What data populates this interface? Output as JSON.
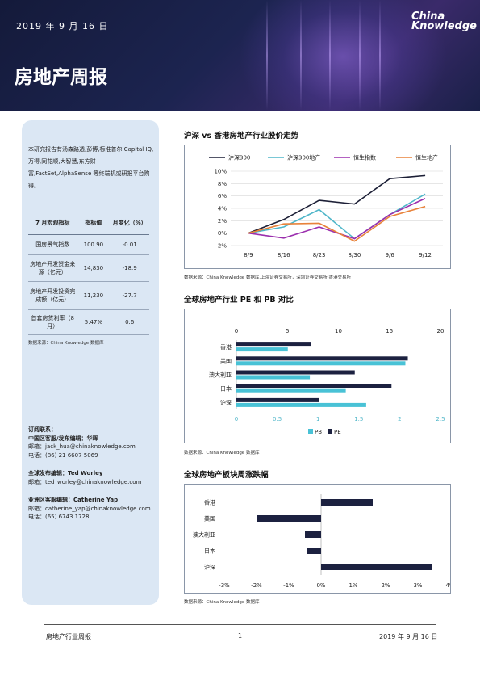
{
  "header": {
    "date": "2019 年 9 月 16 日",
    "title": "房地产周报",
    "logo_line1": "China",
    "logo_line2": "Knowledge"
  },
  "sidebar": {
    "intro": "本研究报告有汤森路透,彭博,标准普尔 Capital IQ,万得,同花顺,大智慧,东方财富,FactSet,AlphaSense 等终端机或研报平台购得。",
    "table": {
      "headers": [
        "7 月宏观指标",
        "指标值",
        "月变化（%）"
      ],
      "rows": [
        [
          "国房景气指数",
          "100.90",
          "-0.01"
        ],
        [
          "房地产开发资金来源（亿元）",
          "14,830",
          "-18.9"
        ],
        [
          "房地产开发投资完成额（亿元）",
          "11,230",
          "-27.7"
        ],
        [
          "首套房贷利率（8 月）",
          "5.47%",
          "0.6"
        ]
      ]
    },
    "source": "数据来源：China Knowledge 数据库",
    "contacts": {
      "c1_title": "订阅联系：",
      "c1_name": "中国区客服/发布编辑：华晖",
      "c1_email": "邮箱：jack_hua@chinaknowledge.com",
      "c1_phone": "电话：(86) 21 6607 5069",
      "c2_name": "全球发布编辑：Ted Worley",
      "c2_email": "邮箱：ted_worley@chinaknowledge.com",
      "c3_name": "亚洲区客服编辑：Catherine Yap",
      "c3_email": "邮箱：catherine_yap@chinaknowledge.com",
      "c3_phone": "电话：(65) 6743 1728"
    }
  },
  "sections": {
    "s1_title": "沪深 vs 香港房地产行业股价走势",
    "s1_note": "数据来源：China Knowledge 数据库,上海证券交易所，深圳证券交易所,香港交易所",
    "s2_title": "全球房地产行业 PE 和 PB 对比",
    "s2_note": "数据来源：China Knowledge 数据库",
    "s3_title": "全球房地产板块周涨跌幅",
    "s3_note": "数据来源：China Knowledge 数据库"
  },
  "footer": {
    "left": "房地产行业周报",
    "page": "1",
    "right": "2019 年 9 月 16 日"
  },
  "colors": {
    "hs300": "#1c1f36",
    "hs300_re": "#4fb6c9",
    "hsi": "#9b2fae",
    "hsi_re": "#e8823a",
    "pb": "#49c2d6",
    "pe": "#1c2140",
    "weekly": "#1c2140"
  },
  "chart_data": [
    {
      "type": "line",
      "x": [
        "8/9",
        "8/16",
        "8/23",
        "8/30",
        "9/6",
        "9/12"
      ],
      "ylim": [
        -2,
        10
      ],
      "yticks": [
        "10%",
        "8%",
        "6%",
        "4%",
        "2%",
        "0%",
        "-2%"
      ],
      "series": [
        {
          "name": "沪深300",
          "values": [
            0.0,
            2.2,
            5.3,
            4.7,
            8.8,
            9.3
          ]
        },
        {
          "name": "沪深300地产",
          "values": [
            0.0,
            1.0,
            3.8,
            -0.9,
            3.0,
            6.3
          ]
        },
        {
          "name": "恒生指数",
          "values": [
            0.0,
            -0.8,
            1.0,
            -0.9,
            3.0,
            5.6
          ]
        },
        {
          "name": "恒生地产",
          "values": [
            0.0,
            1.5,
            1.6,
            -1.3,
            2.7,
            4.3
          ]
        }
      ]
    },
    {
      "type": "bar",
      "orientation": "horizontal",
      "categories": [
        "香港",
        "美国",
        "澳大利亚",
        "日本",
        "沪深"
      ],
      "pe_ticks": [
        "0",
        "5",
        "10",
        "15",
        "20"
      ],
      "pb_ticks": [
        "0",
        "0.5",
        "1",
        "1.5",
        "2",
        "2.5"
      ],
      "series": [
        {
          "name": "PB",
          "values": [
            0.63,
            2.07,
            0.9,
            1.34,
            1.59
          ],
          "xlim": [
            0,
            2.5
          ]
        },
        {
          "name": "PE",
          "values": [
            7.3,
            16.8,
            11.6,
            15.2,
            8.1
          ],
          "xlim": [
            0,
            20
          ]
        }
      ],
      "legend": [
        "PB",
        "PE"
      ]
    },
    {
      "type": "bar",
      "orientation": "horizontal",
      "categories": [
        "香港",
        "美国",
        "澳大利亚",
        "日本",
        "沪深"
      ],
      "xlim": [
        -3,
        4
      ],
      "xticks": [
        "-3%",
        "-2%",
        "-1%",
        "0%",
        "1%",
        "2%",
        "3%",
        "4%"
      ],
      "values": [
        1.6,
        -2.0,
        -0.5,
        -0.45,
        3.45
      ]
    }
  ]
}
